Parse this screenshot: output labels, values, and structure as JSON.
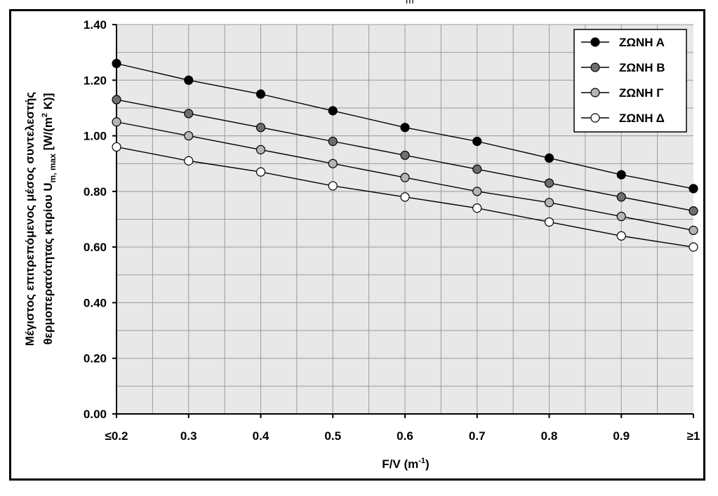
{
  "top_fragment": "m",
  "chart_data": {
    "type": "line",
    "x_ticks": [
      "≤0.2",
      "0.3",
      "0.4",
      "0.5",
      "0.6",
      "0.7",
      "0.8",
      "0.9",
      "≥1"
    ],
    "x": [
      0.2,
      0.3,
      0.4,
      0.5,
      0.6,
      0.7,
      0.8,
      0.9,
      1.0
    ],
    "xlim": [
      0.2,
      1.0
    ],
    "ylim": [
      0.0,
      1.4
    ],
    "y_ticks": [
      "0.00",
      "0.20",
      "0.40",
      "0.60",
      "0.80",
      "1.00",
      "1.20",
      "1.40"
    ],
    "y_tick_values": [
      0.0,
      0.2,
      0.4,
      0.6,
      0.8,
      1.0,
      1.2,
      1.4
    ],
    "xlabel": {
      "main": "F/V (m",
      "sup": "-1",
      "end": ")"
    },
    "ylabel": {
      "line1": "Μέγιστος επιτρεπόμενος μέσος συντελεστής",
      "line2_prefix": "θερμοπερατότητας κτιρίου U",
      "line2_sub": "m, max",
      "line2_mid": " [W/(m",
      "line2_sup": "2",
      "line2_end": " K)]"
    },
    "grid": true,
    "legend_position": "top-right",
    "plot_background": "#e8e8e8",
    "series": [
      {
        "name": "ΖΩΝΗ Α",
        "marker_color": "#000000",
        "values": [
          1.26,
          1.2,
          1.15,
          1.09,
          1.03,
          0.98,
          0.92,
          0.86,
          0.81
        ]
      },
      {
        "name": "ΖΩΝΗ Β",
        "marker_color": "#6e6e6e",
        "values": [
          1.13,
          1.08,
          1.03,
          0.98,
          0.93,
          0.88,
          0.83,
          0.78,
          0.73
        ]
      },
      {
        "name": "ΖΩΝΗ Γ",
        "marker_color": "#b4b4b4",
        "values": [
          1.05,
          1.0,
          0.95,
          0.9,
          0.85,
          0.8,
          0.76,
          0.71,
          0.66
        ]
      },
      {
        "name": "ΖΩΝΗ Δ",
        "marker_color": "#ffffff",
        "values": [
          0.96,
          0.91,
          0.87,
          0.82,
          0.78,
          0.74,
          0.69,
          0.64,
          0.6
        ]
      }
    ]
  }
}
